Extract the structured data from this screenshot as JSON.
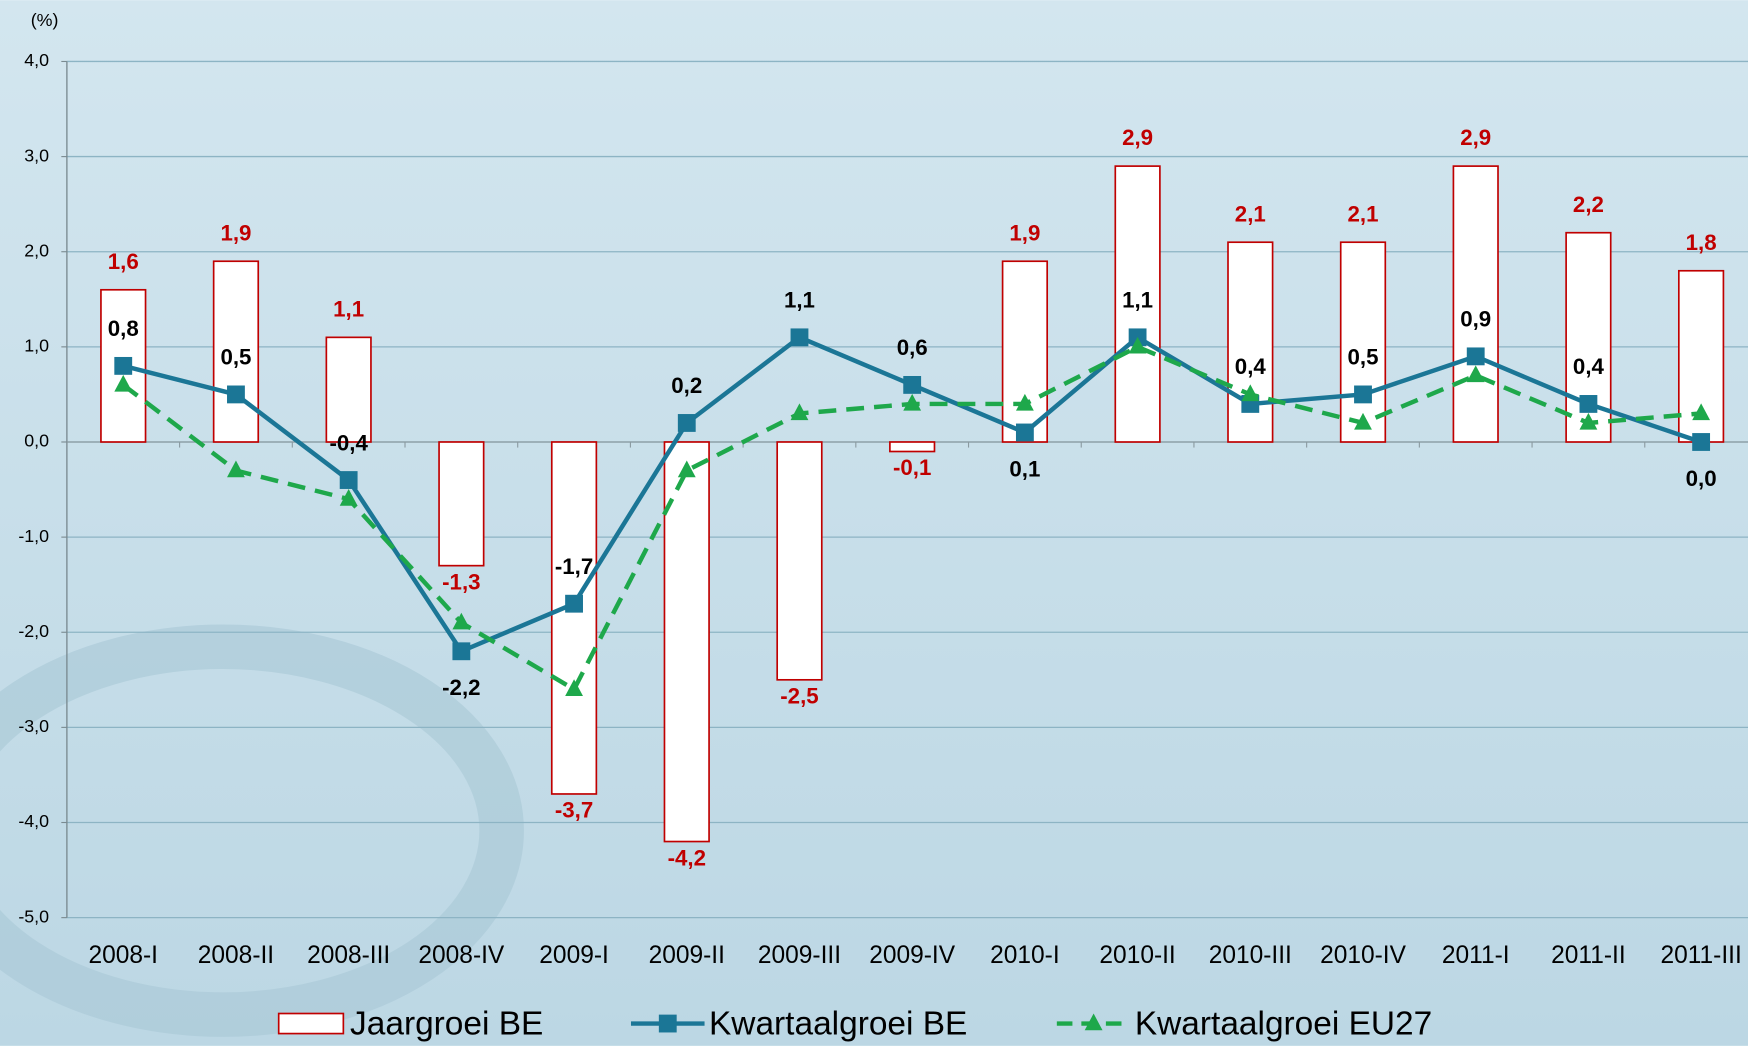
{
  "chart_data": {
    "type": "bar",
    "y_axis_label": "(%)",
    "categories": [
      "2008-I",
      "2008-II",
      "2008-III",
      "2008-IV",
      "2009-I",
      "2009-II",
      "2009-III",
      "2009-IV",
      "2010-I",
      "2010-II",
      "2010-III",
      "2010-IV",
      "2011-I",
      "2011-II",
      "2011-III"
    ],
    "series": [
      {
        "name": "Jaargroei BE",
        "type": "bar",
        "color": "#c00000",
        "values": [
          1.6,
          1.9,
          1.1,
          -1.3,
          -3.7,
          -4.2,
          -2.5,
          -0.1,
          1.9,
          2.9,
          2.1,
          2.1,
          2.9,
          2.2,
          1.8
        ],
        "value_labels": [
          "1,6",
          "1,9",
          "1,1",
          "-1,3",
          "-3,7",
          "-4,2",
          "-2,5",
          "-0,1",
          "1,9",
          "2,9",
          "2,1",
          "2,1",
          "2,9",
          "2,2",
          "1,8"
        ]
      },
      {
        "name": "Kwartaalgroei BE",
        "type": "line",
        "color": "#1b7696",
        "marker": "square",
        "values": [
          0.8,
          0.5,
          -0.4,
          -2.2,
          -1.7,
          0.2,
          1.1,
          0.6,
          0.1,
          1.1,
          0.4,
          0.5,
          0.9,
          0.4,
          0.0
        ],
        "value_labels": [
          "0,8",
          "0,5",
          "-0,4",
          "-2,2",
          "-1,7",
          "0,2",
          "1,1",
          "0,6",
          "0,1",
          "1,1",
          "0,4",
          "0,5",
          "0,9",
          "0,4",
          "0,0"
        ]
      },
      {
        "name": "Kwartaalgroei EU27",
        "type": "line",
        "color": "#1ea84b",
        "marker": "triangle",
        "dashed": true,
        "values": [
          0.6,
          -0.3,
          -0.6,
          -1.9,
          -2.6,
          -0.3,
          0.3,
          0.4,
          0.4,
          1.0,
          0.5,
          0.2,
          0.7,
          0.2,
          0.3
        ]
      }
    ],
    "ylim": [
      -5,
      4
    ],
    "yticks": [
      {
        "value": -5,
        "label": "-5,0"
      },
      {
        "value": -4,
        "label": "-4,0"
      },
      {
        "value": -3,
        "label": "-3,0"
      },
      {
        "value": -2,
        "label": "-2,0"
      },
      {
        "value": -1,
        "label": "-1,0"
      },
      {
        "value": 0,
        "label": "0,0"
      },
      {
        "value": 1,
        "label": "1,0"
      },
      {
        "value": 2,
        "label": "2,0"
      },
      {
        "value": 3,
        "label": "3,0"
      },
      {
        "value": 4,
        "label": "4,0"
      }
    ],
    "grid": true,
    "legend": "bottom"
  }
}
